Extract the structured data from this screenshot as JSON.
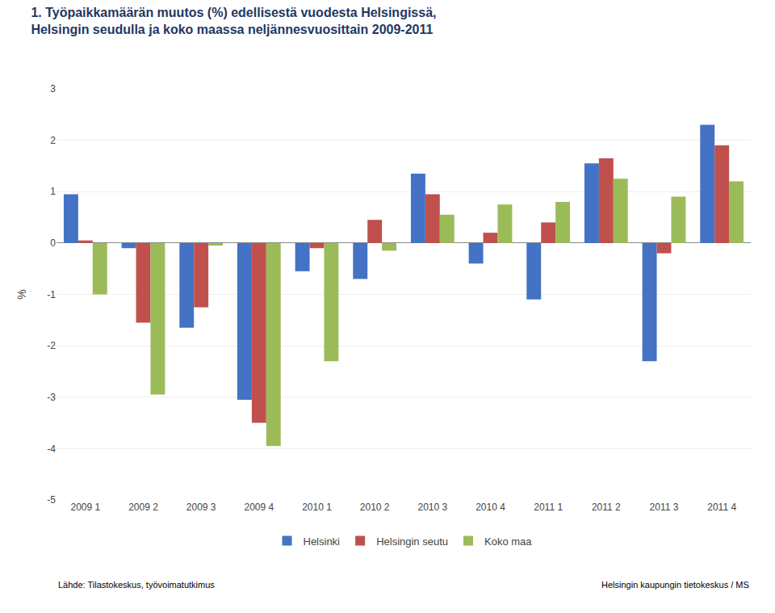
{
  "chart_data": {
    "type": "bar",
    "title": "1. Työpaikkamäärän muutos (%) edellisestä vuodesta Helsingissä,",
    "subtitle": "Helsingin seudulla ja koko maassa neljännesvuosittain 2009-2011",
    "ylabel": "%",
    "categories": [
      "2009 1",
      "2009 2",
      "2009 3",
      "2009 4",
      "2010 1",
      "2010 2",
      "2010 3",
      "2010 4",
      "2011 1",
      "2011 2",
      "2011 3",
      "2011 4"
    ],
    "series": [
      {
        "name": "Helsinki",
        "color": "#4472C4",
        "values": [
          0.95,
          -0.1,
          -1.65,
          -3.05,
          -0.55,
          -0.7,
          1.35,
          -0.4,
          -1.1,
          1.55,
          -2.3,
          2.3
        ]
      },
      {
        "name": "Helsingin seutu",
        "color": "#C0504D",
        "values": [
          0.05,
          -1.55,
          -1.25,
          -3.5,
          -0.1,
          0.45,
          0.95,
          0.2,
          0.4,
          1.65,
          -0.2,
          1.9
        ]
      },
      {
        "name": "Koko maa",
        "color": "#9BBB59",
        "values": [
          -1.0,
          -2.95,
          -0.05,
          -3.95,
          -2.3,
          -0.15,
          0.55,
          0.75,
          0.8,
          1.25,
          0.9,
          1.2
        ]
      }
    ],
    "ylim": [
      -5,
      3
    ],
    "yticks": [
      -5,
      -4,
      -3,
      -2,
      -1,
      0,
      1,
      2,
      3
    ],
    "grid": true,
    "legend": "bottom",
    "annotations": [
      "Lähde: Tilastokeskus, työvoimatutkimus",
      "Helsingin kaupungin tietokeskus / MS"
    ]
  }
}
